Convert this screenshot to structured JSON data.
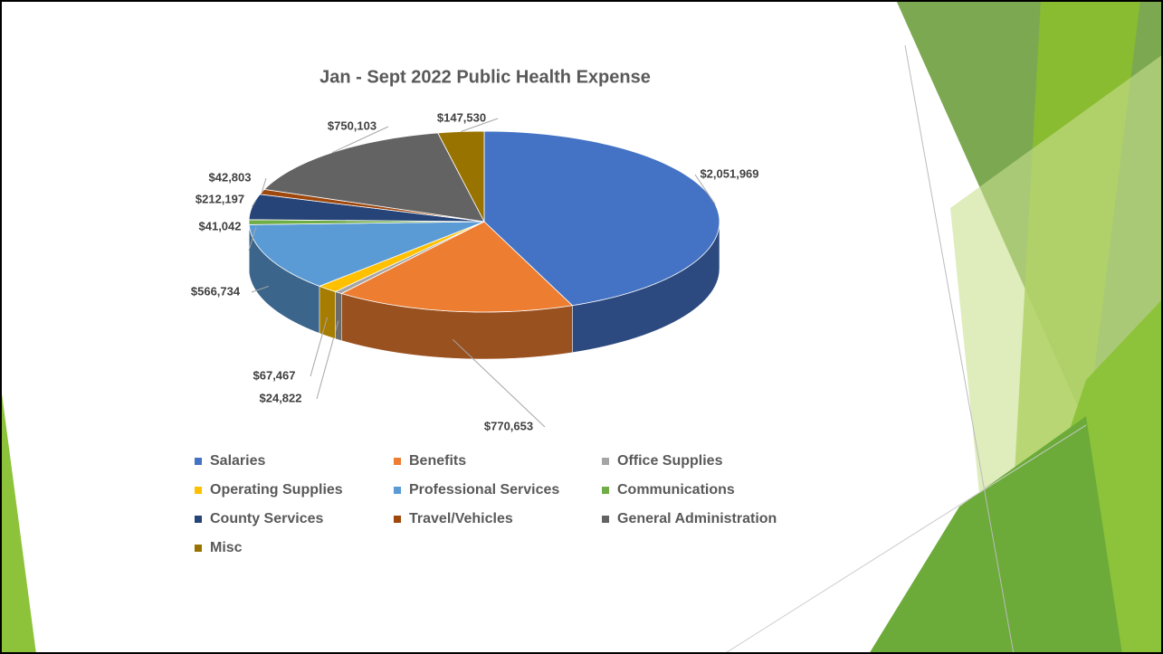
{
  "chart_data": {
    "type": "pie3d",
    "title": "Jan - Sept 2022 Public Health Expense",
    "categories": [
      "Salaries",
      "Benefits",
      "Office Supplies",
      "Operating Supplies",
      "Professional Services",
      "Communications",
      "County Services",
      "Travel/Vehicles",
      "General Administration",
      "Misc"
    ],
    "values": [
      2051969,
      770653,
      24822,
      67467,
      566734,
      41042,
      212197,
      42803,
      750103,
      147530
    ],
    "value_labels": [
      "$2,051,969",
      "$770,653",
      "$24,822",
      "$67,467",
      "$566,734",
      "$41,042",
      "$212,197",
      "$42,803",
      "$750,103",
      "$147,530"
    ],
    "colors": [
      "#4472c4",
      "#ed7d31",
      "#a5a5a5",
      "#ffc000",
      "#5b9bd5",
      "#70ad47",
      "#264478",
      "#9e480e",
      "#636363",
      "#997300"
    ],
    "legend": "bottom"
  }
}
